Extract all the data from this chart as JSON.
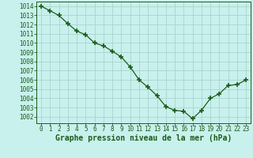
{
  "x": [
    0,
    1,
    2,
    3,
    4,
    5,
    6,
    7,
    8,
    9,
    10,
    11,
    12,
    13,
    14,
    15,
    16,
    17,
    18,
    19,
    20,
    21,
    22,
    23
  ],
  "y": [
    1014.0,
    1013.5,
    1013.0,
    1012.1,
    1011.3,
    1010.9,
    1010.0,
    1009.7,
    1009.1,
    1008.5,
    1007.4,
    1006.0,
    1005.2,
    1004.3,
    1003.1,
    1002.7,
    1002.6,
    1001.8,
    1002.7,
    1004.0,
    1004.5,
    1005.4,
    1005.5,
    1006.0
  ],
  "line_color": "#1a5c1a",
  "marker": "+",
  "marker_size": 5,
  "marker_linewidth": 1.2,
  "bg_color": "#c8f0ec",
  "grid_color": "#aad4d0",
  "xlabel": "Graphe pression niveau de la mer (hPa)",
  "xlabel_color": "#1a5c1a",
  "tick_color": "#1a5c1a",
  "tick_fontsize": 5.5,
  "xlabel_fontsize": 7,
  "ylim": [
    1001.3,
    1014.5
  ],
  "yticks": [
    1002,
    1003,
    1004,
    1005,
    1006,
    1007,
    1008,
    1009,
    1010,
    1011,
    1012,
    1013,
    1014
  ],
  "xlim": [
    -0.5,
    23.5
  ],
  "xticks": [
    0,
    1,
    2,
    3,
    4,
    5,
    6,
    7,
    8,
    9,
    10,
    11,
    12,
    13,
    14,
    15,
    16,
    17,
    18,
    19,
    20,
    21,
    22,
    23
  ]
}
